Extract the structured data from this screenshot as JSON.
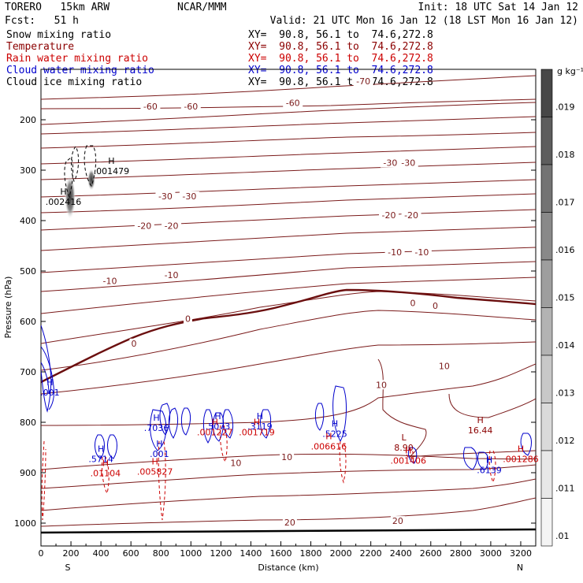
{
  "header": {
    "model": "TORERO   15km ARW",
    "center": "NCAR/MMM",
    "init": "Init: 18 UTC Sat 14 Jan 12",
    "fcst": "Fcst:   51 h",
    "valid": "Valid: 21 UTC Mon 16 Jan 12 (18 LST Mon 16 Jan 12)"
  },
  "legend": [
    {
      "name": "Snow mixing ratio",
      "xy": "XY=  90.8, 56.1 to  74.6,272.8",
      "color": "#000000"
    },
    {
      "name": "Temperature",
      "xy": "XY=  90.8, 56.1 to  74.6,272.8",
      "color": "#8b0000"
    },
    {
      "name": "Rain water mixing ratio",
      "xy": "XY=  90.8, 56.1 to  74.6,272.8",
      "color": "#cc0000"
    },
    {
      "name": "Cloud water mixing ratio",
      "xy": "XY=  90.8, 56.1 to  74.6,272.8",
      "color": "#0000cc"
    },
    {
      "name": "Cloud ice mixing ratio",
      "xy": "XY=  90.8, 56.1 to  74.6,272.8",
      "color": "#000000"
    }
  ],
  "chart_data": {
    "type": "contour",
    "title": "",
    "xlabel": "Distance (km)",
    "ylabel": "Pressure (hPa)",
    "xlim": [
      0,
      3300
    ],
    "ylim": [
      1050,
      100
    ],
    "x_ticks": [
      0,
      200,
      400,
      600,
      800,
      1000,
      1200,
      1400,
      1600,
      1800,
      2000,
      2200,
      2400,
      2600,
      2800,
      3000,
      3200
    ],
    "y_ticks": [
      200,
      300,
      400,
      500,
      600,
      700,
      800,
      900,
      1000
    ],
    "x_end_labels": {
      "left": "S",
      "right": "N"
    },
    "colorbar": {
      "unit": "g kg⁻¹",
      "ticks": [
        ".019",
        ".018",
        ".017",
        ".016",
        ".015",
        ".014",
        ".013",
        ".012",
        ".011",
        ".01"
      ],
      "shades": [
        "#474747",
        "#5d5d5d",
        "#737373",
        "#898989",
        "#9e9e9e",
        "#b3b3b3",
        "#c8c8c8",
        "#dadada",
        "#e8e8e8",
        "#f4f4f4"
      ]
    },
    "temperature_labels": [
      {
        "text": "-70",
        "x": 2150,
        "p": 125
      },
      {
        "text": "-60",
        "x": 730,
        "p": 175
      },
      {
        "text": "-60",
        "x": 1000,
        "p": 175
      },
      {
        "text": "-60",
        "x": 1680,
        "p": 168
      },
      {
        "text": "-30",
        "x": 830,
        "p": 353
      },
      {
        "text": "-30",
        "x": 990,
        "p": 353
      },
      {
        "text": "-30",
        "x": 2330,
        "p": 287
      },
      {
        "text": "-30",
        "x": 2450,
        "p": 287
      },
      {
        "text": "-20",
        "x": 690,
        "p": 412
      },
      {
        "text": "-20",
        "x": 870,
        "p": 412
      },
      {
        "text": "-20",
        "x": 2320,
        "p": 391
      },
      {
        "text": "-20",
        "x": 2470,
        "p": 391
      },
      {
        "text": "-10",
        "x": 460,
        "p": 521
      },
      {
        "text": "-10",
        "x": 870,
        "p": 509
      },
      {
        "text": "-10",
        "x": 2360,
        "p": 464
      },
      {
        "text": "-10",
        "x": 2540,
        "p": 464
      },
      {
        "text": "0",
        "x": 620,
        "p": 645
      },
      {
        "text": "0",
        "x": 980,
        "p": 596
      },
      {
        "text": "0",
        "x": 2480,
        "p": 565
      },
      {
        "text": "0",
        "x": 2630,
        "p": 570
      },
      {
        "text": "10",
        "x": 2270,
        "p": 727
      },
      {
        "text": "10",
        "x": 2690,
        "p": 690
      },
      {
        "text": "10",
        "x": 1300,
        "p": 882
      },
      {
        "text": "10",
        "x": 1640,
        "p": 870
      },
      {
        "text": "20",
        "x": 1660,
        "p": 1000
      },
      {
        "text": "20",
        "x": 2380,
        "p": 997
      }
    ],
    "extrema_labels": [
      {
        "type": "H",
        "value": ".001479",
        "x": 470,
        "p": 294,
        "color": "#000000"
      },
      {
        "type": "H",
        "value": ".002416",
        "x": 150,
        "p": 355,
        "color": "#000000"
      },
      {
        "type": "H",
        "value": ".001",
        "x": 60,
        "p": 733,
        "color": "#0000cc"
      },
      {
        "type": "H",
        "value": ".7036",
        "x": 770,
        "p": 803,
        "color": "#0000cc"
      },
      {
        "type": "H",
        "value": ".001",
        "x": 790,
        "p": 855,
        "color": "#0000cc"
      },
      {
        "type": "H",
        "value": ".5073",
        "x": 1180,
        "p": 800,
        "color": "#0000cc"
      },
      {
        "type": "H",
        "value": ".3119",
        "x": 1460,
        "p": 800,
        "color": "#0000cc"
      },
      {
        "type": "H",
        "value": ".5225",
        "x": 1960,
        "p": 815,
        "color": "#0000cc"
      },
      {
        "type": "H",
        "value": ".5714",
        "x": 400,
        "p": 865,
        "color": "#0000cc"
      },
      {
        "type": "H",
        "value": ".01104",
        "x": 430,
        "p": 893,
        "color": "#cc0000"
      },
      {
        "type": "H",
        "value": ".005827",
        "x": 760,
        "p": 890,
        "color": "#cc0000"
      },
      {
        "type": "H",
        "value": ".001227",
        "x": 1160,
        "p": 812,
        "color": "#cc0000"
      },
      {
        "type": "H",
        "value": ".001719",
        "x": 1440,
        "p": 812,
        "color": "#cc0000"
      },
      {
        "type": "H",
        "value": ".006616",
        "x": 1920,
        "p": 840,
        "color": "#cc0000"
      },
      {
        "type": "L",
        "value": "8.90",
        "x": 2420,
        "p": 842,
        "color": "#8b0000"
      },
      {
        "type": "H",
        "value": "16.44",
        "x": 2930,
        "p": 808,
        "color": "#8b0000"
      },
      {
        "type": "H",
        "value": ".001406",
        "x": 2450,
        "p": 868,
        "color": "#cc0000"
      },
      {
        "type": "H",
        "value": ".6139",
        "x": 2990,
        "p": 887,
        "color": "#0000cc"
      },
      {
        "type": "H",
        "value": ".001286",
        "x": 3200,
        "p": 865,
        "color": "#cc0000"
      }
    ]
  }
}
